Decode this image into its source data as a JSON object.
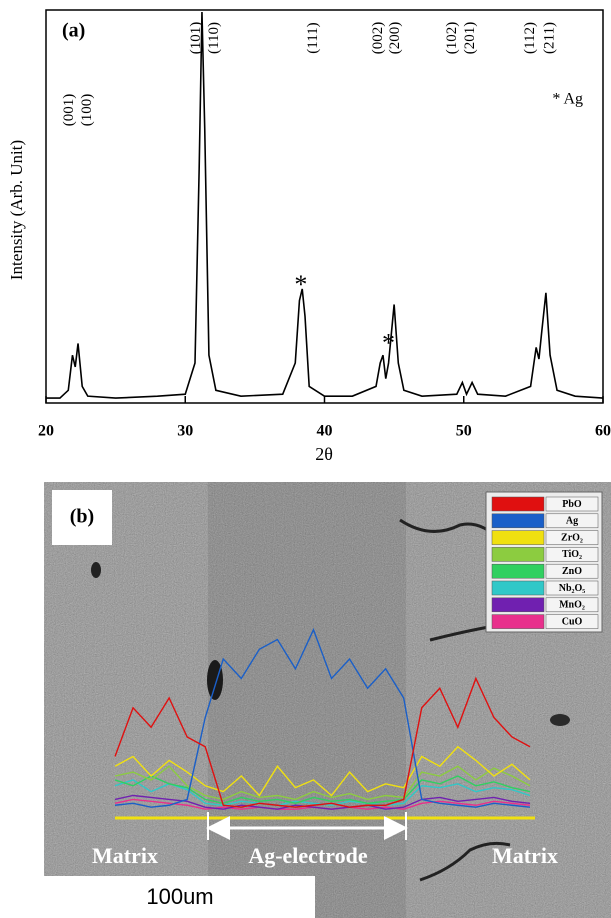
{
  "chart_data": [
    {
      "type": "line",
      "panel_label": "(a)",
      "xlabel": "2θ",
      "ylabel": "Intensity (Arb. Unit)",
      "xlim": [
        20,
        60
      ],
      "xticks": [
        20,
        30,
        40,
        50,
        60
      ],
      "ylim": [
        0,
        100
      ],
      "series": [
        {
          "color": "#000000",
          "x": [
            20,
            21,
            21.6,
            21.9,
            22.1,
            22.3,
            22.6,
            23,
            25,
            28,
            30,
            30.7,
            31.0,
            31.2,
            31.4,
            31.7,
            32.2,
            34,
            37,
            37.9,
            38.2,
            38.4,
            38.6,
            38.9,
            40,
            42,
            43.7,
            44.0,
            44.2,
            44.4,
            44.6,
            45.0,
            45.3,
            45.7,
            47,
            49.5,
            49.9,
            50.2,
            50.6,
            51,
            53,
            54.8,
            55.2,
            55.4,
            55.6,
            55.9,
            56.2,
            56.7,
            58,
            60
          ],
          "values": [
            1,
            1,
            3,
            12,
            9,
            15,
            4,
            1.5,
            1,
            1.5,
            2,
            10,
            60,
            100,
            70,
            12,
            3,
            1.5,
            2,
            10,
            26,
            29,
            22,
            4,
            1.5,
            1.5,
            4,
            10,
            12,
            6,
            10,
            25,
            10,
            3,
            1.5,
            2,
            5,
            2,
            5,
            2,
            1.5,
            4,
            14,
            11,
            18,
            28,
            12,
            3,
            1.5,
            1
          ]
        }
      ],
      "peak_labels": [
        {
          "label": "(001)",
          "x": 21.7
        },
        {
          "label": "(100)",
          "x": 23.0
        },
        {
          "label": "(101)",
          "x": 30.8
        },
        {
          "label": "(110)",
          "x": 32.1
        },
        {
          "label": "(111)",
          "x": 39.2
        },
        {
          "label": "(002)",
          "x": 43.9
        },
        {
          "label": "(200)",
          "x": 45.1
        },
        {
          "label": "(102)",
          "x": 49.2
        },
        {
          "label": "(201)",
          "x": 50.5
        },
        {
          "label": "(112)",
          "x": 54.8
        },
        {
          "label": "(211)",
          "x": 56.2
        }
      ],
      "markers": [
        {
          "label": "*",
          "x": 38.3,
          "y": 31
        },
        {
          "label": "*",
          "x": 44.6,
          "y": 16
        }
      ],
      "marker_note": "* Ag"
    },
    {
      "type": "line",
      "panel_label": "(b)",
      "ylim": [
        0,
        100
      ],
      "categories": [
        null,
        null,
        null,
        null,
        null,
        null,
        null,
        null,
        null,
        null,
        null,
        null,
        null,
        null,
        null,
        null,
        null,
        null,
        null,
        null,
        null,
        null,
        null,
        null
      ],
      "series": [
        {
          "name": "PbO",
          "color": "#e01010",
          "values": [
            30,
            55,
            45,
            60,
            40,
            35,
            5,
            4,
            6,
            5,
            4,
            5,
            6,
            4,
            5,
            5,
            8,
            55,
            65,
            45,
            70,
            50,
            40,
            35
          ]
        },
        {
          "name": "Ag",
          "color": "#1a5fc8",
          "values": [
            5,
            6,
            4,
            5,
            8,
            50,
            80,
            70,
            85,
            90,
            75,
            95,
            70,
            80,
            65,
            75,
            60,
            8,
            6,
            5,
            4,
            6,
            5,
            4
          ]
        },
        {
          "name": "ZrO₂",
          "color": "#f0e010",
          "values": [
            25,
            30,
            20,
            28,
            22,
            15,
            12,
            20,
            10,
            25,
            14,
            18,
            10,
            22,
            12,
            16,
            14,
            30,
            25,
            35,
            28,
            20,
            26,
            18
          ]
        },
        {
          "name": "TiO₂",
          "color": "#8ccc40",
          "values": [
            20,
            22,
            18,
            25,
            15,
            10,
            8,
            12,
            9,
            10,
            8,
            12,
            9,
            11,
            8,
            10,
            9,
            22,
            20,
            25,
            18,
            24,
            20,
            15
          ]
        },
        {
          "name": "ZnO",
          "color": "#30d060",
          "values": [
            18,
            15,
            20,
            16,
            14,
            8,
            6,
            9,
            7,
            8,
            6,
            9,
            7,
            8,
            6,
            7,
            8,
            18,
            16,
            20,
            15,
            17,
            14,
            12
          ]
        },
        {
          "name": "Nb₂O₅",
          "color": "#30c8c8",
          "values": [
            15,
            18,
            12,
            16,
            13,
            6,
            5,
            7,
            6,
            5,
            7,
            6,
            5,
            7,
            6,
            5,
            6,
            15,
            14,
            16,
            12,
            14,
            13,
            10
          ]
        },
        {
          "name": "MnO₂",
          "color": "#7020b0",
          "values": [
            8,
            10,
            9,
            8,
            7,
            4,
            3,
            5,
            4,
            3,
            5,
            4,
            3,
            4,
            5,
            3,
            4,
            8,
            9,
            7,
            8,
            9,
            7,
            6
          ]
        },
        {
          "name": "CuO",
          "color": "#e8308c",
          "values": [
            6,
            8,
            7,
            6,
            5,
            3,
            4,
            3,
            4,
            3,
            3,
            4,
            3,
            4,
            3,
            4,
            3,
            6,
            7,
            6,
            5,
            7,
            6,
            5
          ]
        }
      ],
      "annotations": [
        "Matrix",
        "Ag-electrode",
        "Matrix"
      ],
      "scale_bar": "100um"
    }
  ]
}
